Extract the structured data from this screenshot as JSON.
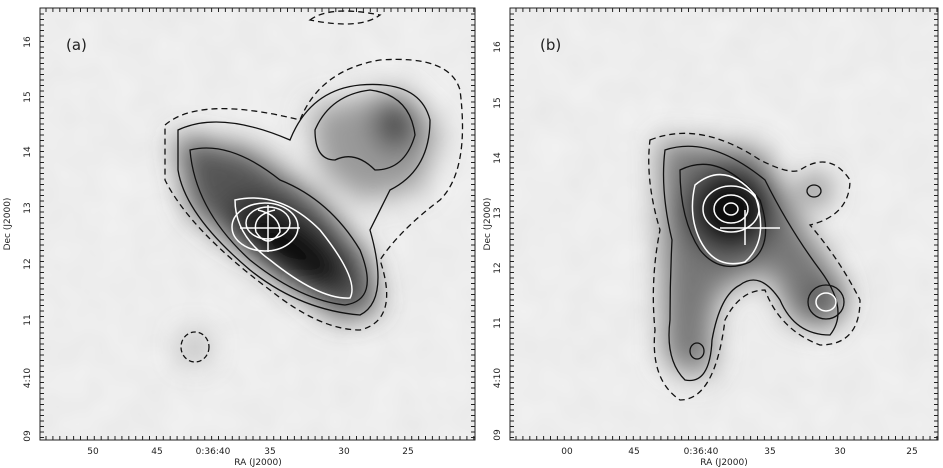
{
  "panels": [
    {
      "label": "(a)",
      "x_axis_label": "RA (J2000)",
      "y_axis_label": "Dec (J2000)",
      "x_ticks": [
        "50",
        "45",
        "0:36:40",
        "35",
        "30",
        "25"
      ],
      "y_ticks": [
        "09",
        "4:10",
        "11",
        "12",
        "13",
        "14",
        "15",
        "16"
      ]
    },
    {
      "label": "(b)",
      "x_axis_label": "RA (J2000)",
      "y_axis_label": "Dec (J2000)",
      "x_ticks": [
        "00",
        "45",
        "0:36:40",
        "35",
        "30",
        "25"
      ],
      "y_ticks": [
        "09",
        "4:10",
        "11",
        "12",
        "13",
        "14",
        "15",
        "16"
      ]
    }
  ]
}
